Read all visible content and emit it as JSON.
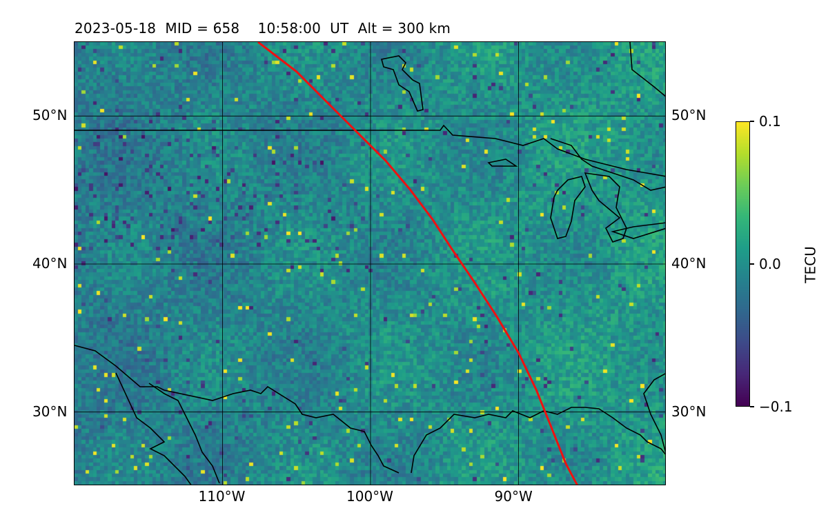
{
  "title": {
    "date": "2023-05-18",
    "mid": "MID = 658",
    "time": "10:58:00",
    "ut": "UT",
    "alt": "Alt = 300 km"
  },
  "map": {
    "projection": "equirectangular",
    "lon_range": [
      -120,
      -80
    ],
    "lat_range": [
      25,
      55
    ],
    "gridlines": true,
    "lat_ticks": [
      {
        "value": 50,
        "label": "50°N"
      },
      {
        "value": 40,
        "label": "40°N"
      },
      {
        "value": 30,
        "label": "30°N"
      }
    ],
    "lon_ticks": [
      {
        "value": -110,
        "label": "110°W"
      },
      {
        "value": -100,
        "label": "100°W"
      },
      {
        "value": -90,
        "label": "90°W"
      }
    ],
    "track_color": "#ee1111",
    "track_points": [
      [
        -107.6,
        55.0
      ],
      [
        -105.0,
        53.0
      ],
      [
        -103.0,
        51.0
      ],
      [
        -101.0,
        49.0
      ],
      [
        -99.0,
        47.0
      ],
      [
        -97.3,
        45.0
      ],
      [
        -95.8,
        43.0
      ],
      [
        -94.5,
        41.0
      ],
      [
        -93.0,
        38.8
      ],
      [
        -91.5,
        36.5
      ],
      [
        -90.0,
        34.0
      ],
      [
        -88.8,
        31.5
      ],
      [
        -87.8,
        29.0
      ],
      [
        -86.8,
        26.5
      ],
      [
        -86.0,
        25.0
      ]
    ]
  },
  "colorbar": {
    "title": "TECU",
    "colormap": "viridis",
    "ticks": [
      {
        "value": 0.1,
        "label": "0.1"
      },
      {
        "value": 0.0,
        "label": "0.0"
      },
      {
        "value": -0.1,
        "label": "−0.1"
      }
    ],
    "vmin": -0.1,
    "vmax": 0.1
  }
}
